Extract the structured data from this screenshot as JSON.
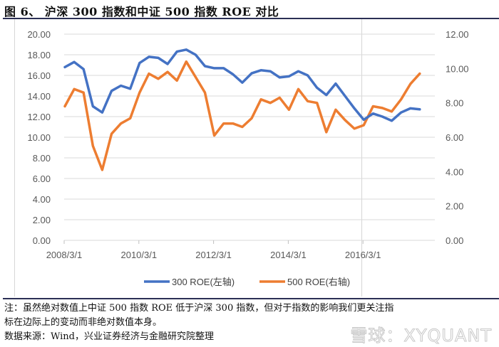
{
  "header": {
    "title": "图 6、 沪深 300 指数和中证 500 指数 ROE 对比"
  },
  "footer": {
    "note_line1": "注：虽然绝对数值上中证 500 指数 ROE 低于沪深 300 指数，但对于指数的影响我们更关注指",
    "note_line2": "标在边际上的变动而非绝对数值本身。",
    "source": "数据来源：Wind，兴业证券经济与金融研究院整理",
    "watermark": "雪球：XYQUANT"
  },
  "colors": {
    "series_300": "#4472C4",
    "series_500": "#ED7D31",
    "grid": "#d9d9d9",
    "rule": "#2b2f55"
  },
  "chart_data": {
    "type": "line",
    "title": "图 6、 沪深 300 指数和中证 500 指数 ROE 对比",
    "xlabel": "",
    "ylabel": "",
    "x_tick_labels": [
      "2008/3/1",
      "2010/3/1",
      "2012/3/1",
      "2014/3/1",
      "2016/3/1"
    ],
    "x": [
      "2008/3/1",
      "2008/6/1",
      "2008/9/1",
      "2008/12/1",
      "2009/3/1",
      "2009/6/1",
      "2009/9/1",
      "2009/12/1",
      "2010/3/1",
      "2010/6/1",
      "2010/9/1",
      "2010/12/1",
      "2011/3/1",
      "2011/6/1",
      "2011/9/1",
      "2011/12/1",
      "2012/3/1",
      "2012/6/1",
      "2012/9/1",
      "2012/12/1",
      "2013/3/1",
      "2013/6/1",
      "2013/9/1",
      "2013/12/1",
      "2014/3/1",
      "2014/6/1",
      "2014/9/1",
      "2014/12/1",
      "2015/3/1",
      "2015/6/1",
      "2015/9/1",
      "2015/12/1",
      "2016/3/1",
      "2016/6/1",
      "2016/9/1",
      "2016/12/1",
      "2017/3/1",
      "2017/6/1",
      "2017/9/1"
    ],
    "left_axis": {
      "ylim": [
        0,
        20
      ],
      "ticks": [
        "0.00",
        "2.00",
        "4.00",
        "6.00",
        "8.00",
        "10.00",
        "12.00",
        "14.00",
        "16.00",
        "18.00",
        "20.00"
      ]
    },
    "right_axis": {
      "ylim": [
        0,
        12
      ],
      "ticks": [
        "0.00",
        "2.00",
        "4.00",
        "6.00",
        "8.00",
        "10.00",
        "12.00"
      ]
    },
    "grid": true,
    "legend_position": "bottom",
    "series": [
      {
        "name": "300 ROE(左轴)",
        "axis": "left",
        "color": "#4472C4",
        "values": [
          16.8,
          17.3,
          16.6,
          13.0,
          12.4,
          14.5,
          15.0,
          14.7,
          17.2,
          17.8,
          17.7,
          17.1,
          18.3,
          18.5,
          18.0,
          16.9,
          16.7,
          16.7,
          16.1,
          15.3,
          16.2,
          16.5,
          16.4,
          15.8,
          15.9,
          16.4,
          16.0,
          14.8,
          14.1,
          15.2,
          14.0,
          12.8,
          11.7,
          12.3,
          12.0,
          11.6,
          12.4,
          12.8,
          12.7
        ]
      },
      {
        "name": "500 ROE(右轴)",
        "axis": "right",
        "color": "#ED7D31",
        "values": [
          7.8,
          8.8,
          8.6,
          5.5,
          4.1,
          6.2,
          6.8,
          7.1,
          8.6,
          9.7,
          9.4,
          9.8,
          9.3,
          10.4,
          9.5,
          8.6,
          6.1,
          6.8,
          6.8,
          6.6,
          7.1,
          8.2,
          8.0,
          8.3,
          7.6,
          8.8,
          8.1,
          8.0,
          6.3,
          7.6,
          7.0,
          6.5,
          6.7,
          7.8,
          7.7,
          7.5,
          8.2,
          9.1,
          9.7
        ]
      }
    ]
  }
}
